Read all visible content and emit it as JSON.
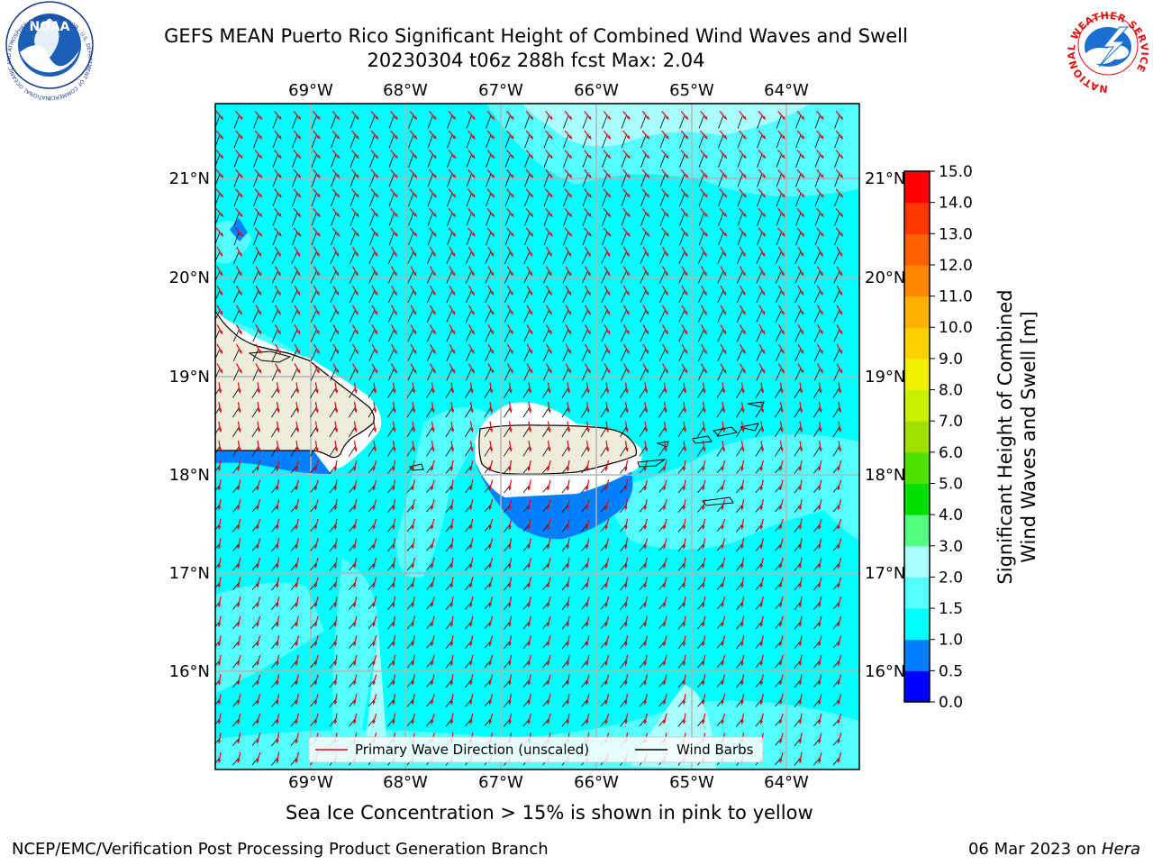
{
  "title": {
    "line1": "GEFS MEAN Puerto Rico Significant Height of Combined Wind Waves and Swell",
    "line2": "20230304 t06z 288h fcst   Max: 2.04"
  },
  "logos": {
    "noaa_text": "NOAA",
    "noaa_ring": "NATIONAL OCEANIC AND ATMOSPHERIC ADMINISTRATION · U.S. DEPARTMENT OF COMMERCE",
    "nws_ring": "NATIONAL WEATHER SERVICE"
  },
  "map": {
    "lon_labels": [
      "69°W",
      "68°W",
      "67°W",
      "66°W",
      "65°W",
      "64°W"
    ],
    "lat_labels": [
      "21°N",
      "20°N",
      "19°N",
      "18°N",
      "17°N",
      "16°N"
    ],
    "legend": {
      "primary_wave": "Primary Wave Direction (unscaled)",
      "wind_barbs": "Wind Barbs"
    },
    "wave_direction_deg": 150
  },
  "colorbar": {
    "label_line1": "Significant Height of Combined",
    "label_line2": "Wind Waves and Swell [m]",
    "ticks": [
      "0.0",
      "0.5",
      "1.0",
      "1.5",
      "2.0",
      "3.0",
      "4.0",
      "5.0",
      "6.0",
      "7.0",
      "8.0",
      "9.0",
      "10.0",
      "11.0",
      "12.0",
      "13.0",
      "14.0",
      "15.0"
    ],
    "colors": [
      "#0000ff",
      "#0080ff",
      "#00ffff",
      "#55ffff",
      "#aaffff",
      "#55ff80",
      "#00e000",
      "#50e000",
      "#a0e000",
      "#c8f000",
      "#f0f000",
      "#ffd000",
      "#ffb000",
      "#ff8800",
      "#ff6000",
      "#ff3800",
      "#ff0000"
    ]
  },
  "colors": {
    "land": "#efecdc",
    "sea_main": "#00ffff",
    "sea_light": "#55ffff",
    "sea_lighter": "#aaffff",
    "sea_shallow": "#0080ff",
    "arrow": "#e8000b"
  },
  "notes": {
    "sea_ice": "Sea Ice Concentration > 15% is shown in pink to yellow"
  },
  "footer": {
    "left": "NCEP/EMC/Verification Post Processing Product Generation Branch",
    "right_prefix": "06 Mar 2023 on ",
    "right_host": "Hera"
  }
}
